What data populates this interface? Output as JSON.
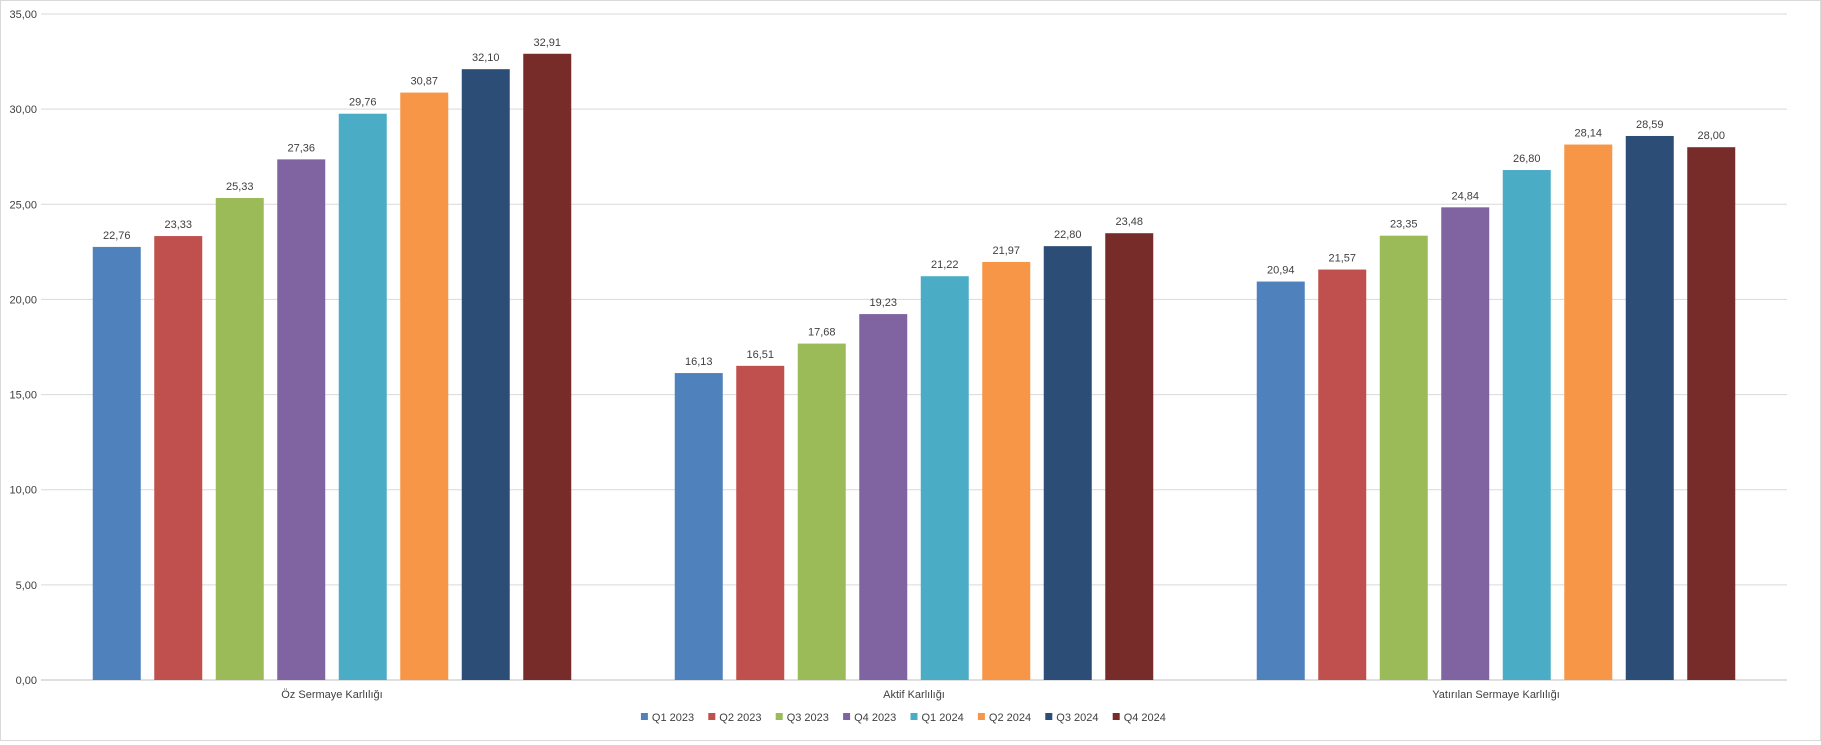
{
  "chart_data": {
    "type": "bar",
    "title": "",
    "xlabel": "",
    "ylabel": "",
    "ylim": [
      0,
      35
    ],
    "y_ticks": [
      "0,00",
      "5,00",
      "10,00",
      "15,00",
      "20,00",
      "25,00",
      "30,00",
      "35,00"
    ],
    "y_tick_values": [
      0,
      5,
      10,
      15,
      20,
      25,
      30,
      35
    ],
    "grid": true,
    "legend_position": "bottom",
    "categories": [
      "Öz Sermaye Karlılığı",
      "Aktif Karlılığı",
      "Yatırılan Sermaye Karlılığı"
    ],
    "series": [
      {
        "name": "Q1 2023",
        "color": "#4F81BD",
        "values": [
          22.76,
          16.13,
          20.94
        ],
        "labels": [
          "22,76",
          "16,13",
          "20,94"
        ]
      },
      {
        "name": "Q2 2023",
        "color": "#C0504D",
        "values": [
          23.33,
          16.51,
          21.57
        ],
        "labels": [
          "23,33",
          "16,51",
          "21,57"
        ]
      },
      {
        "name": "Q3 2023",
        "color": "#9BBB59",
        "values": [
          25.33,
          17.68,
          23.35
        ],
        "labels": [
          "25,33",
          "17,68",
          "23,35"
        ]
      },
      {
        "name": "Q4 2023",
        "color": "#8064A2",
        "values": [
          27.36,
          19.23,
          24.84
        ],
        "labels": [
          "27,36",
          "19,23",
          "24,84"
        ]
      },
      {
        "name": "Q1 2024",
        "color": "#4BACC6",
        "values": [
          29.76,
          21.22,
          26.8
        ],
        "labels": [
          "29,76",
          "21,22",
          "26,80"
        ]
      },
      {
        "name": "Q2 2024",
        "color": "#F79646",
        "values": [
          30.87,
          21.97,
          28.14
        ],
        "labels": [
          "30,87",
          "21,97",
          "28,14"
        ]
      },
      {
        "name": "Q3 2024",
        "color": "#2C4D75",
        "values": [
          32.1,
          22.8,
          28.59
        ],
        "labels": [
          "32,10",
          "22,80",
          "28,59"
        ]
      },
      {
        "name": "Q4 2024",
        "color": "#772C2A",
        "values": [
          32.91,
          23.48,
          28.0
        ],
        "labels": [
          "32,91",
          "23,48",
          "28,00"
        ]
      }
    ]
  }
}
